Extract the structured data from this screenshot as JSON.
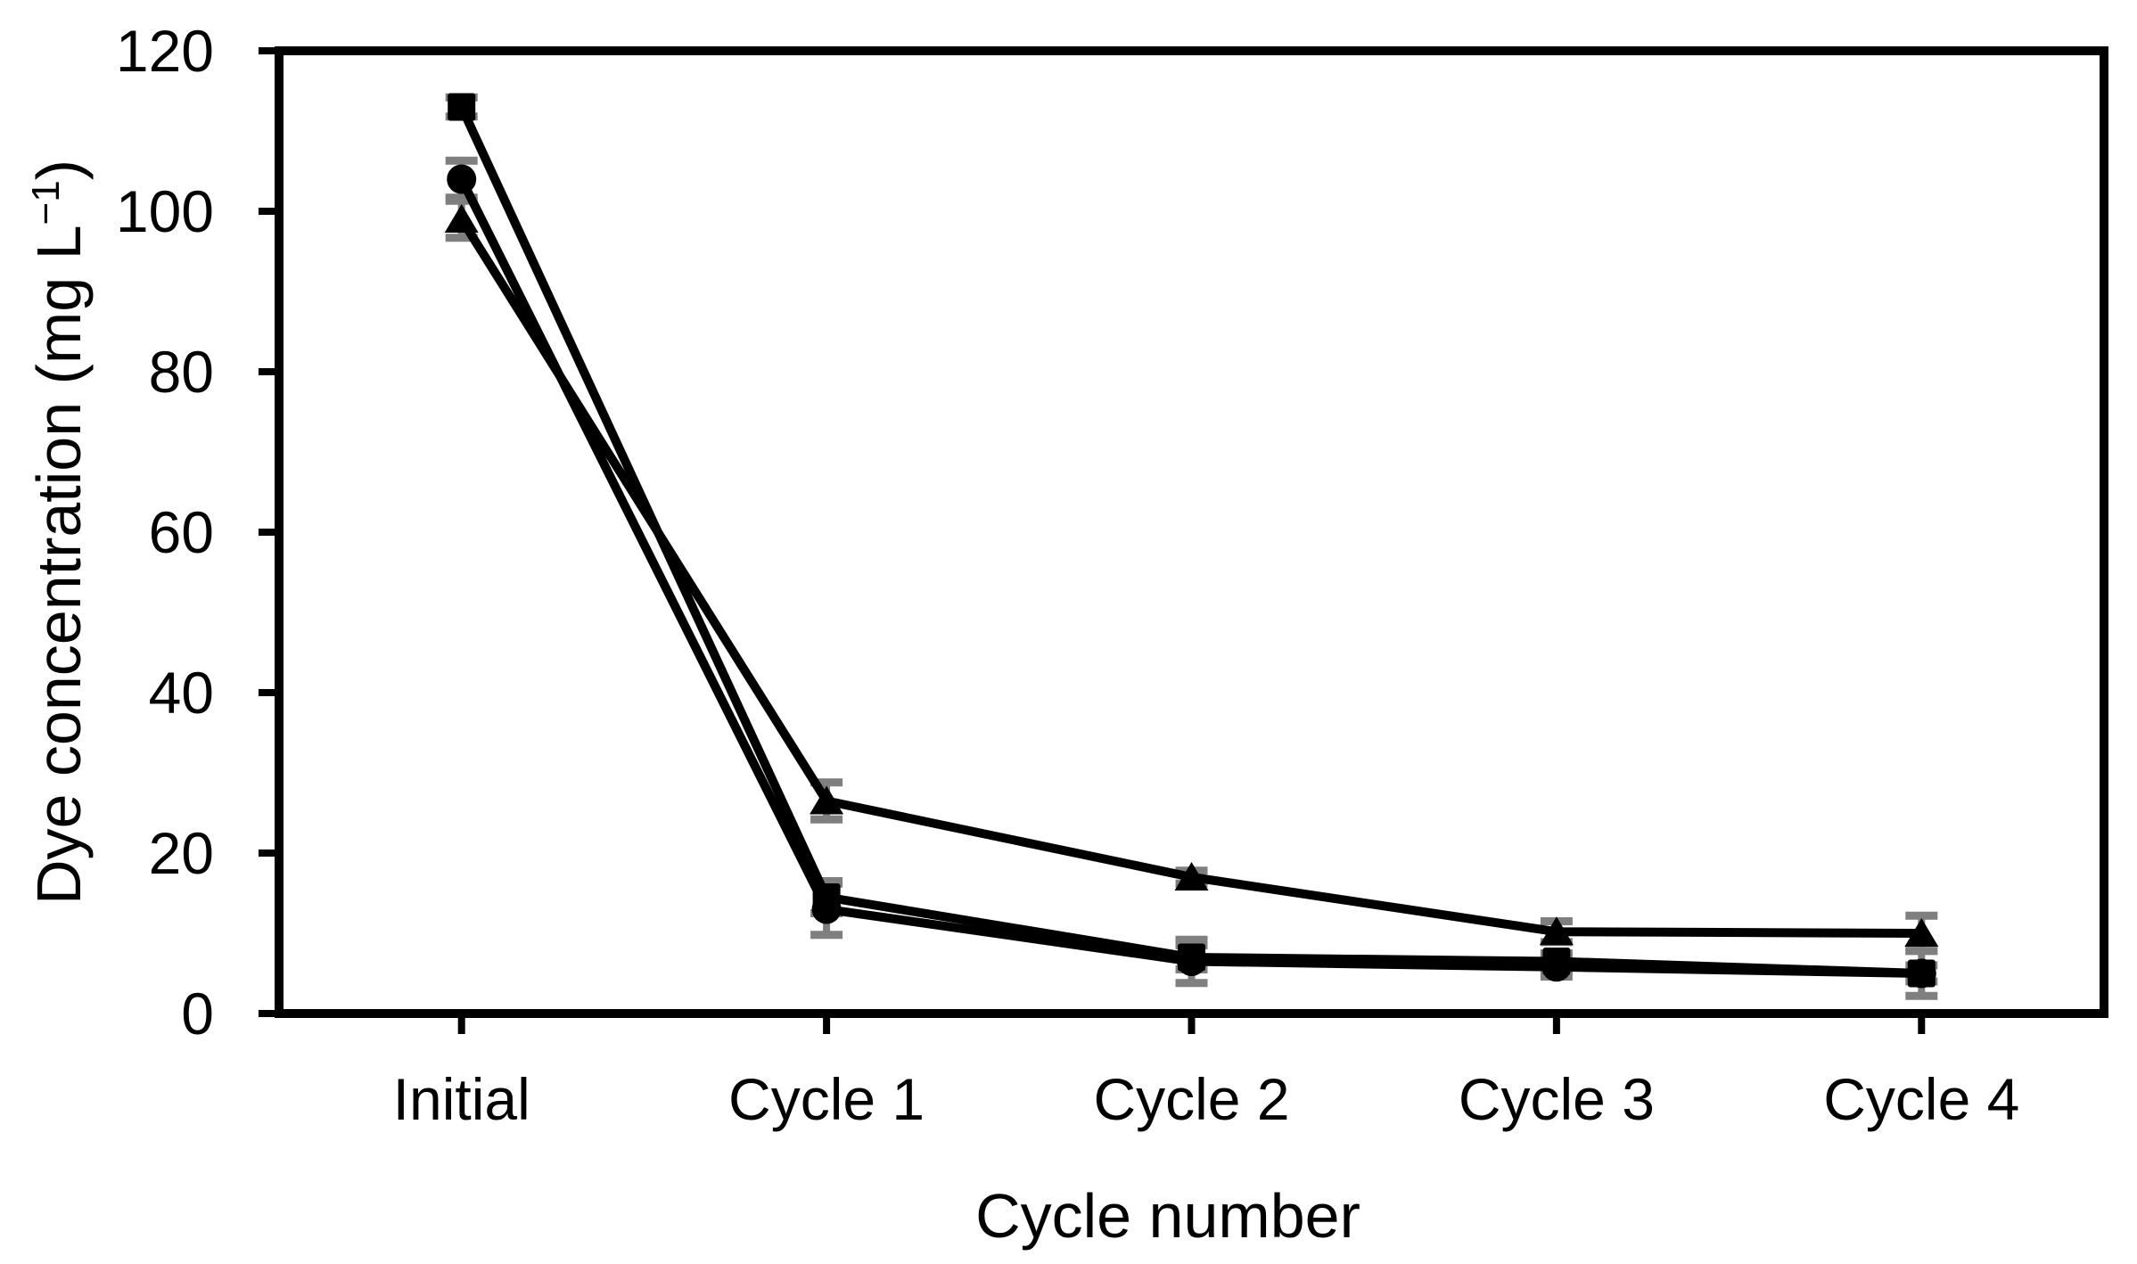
{
  "page": {
    "background": "#ffffff"
  },
  "axis_titles": {
    "x": "Cycle number",
    "y_prefix": "Dye concentration (mg L",
    "y_sup": "−1",
    "y_suffix": ")",
    "y_full": "Dye concentration (mg L⁻¹)"
  },
  "colors": {
    "series_line": "#000000",
    "marker_fill": "#000000",
    "error_bar": "#7f7f7f",
    "axis": "#000000",
    "text": "#000000",
    "background": "#ffffff"
  },
  "chart_data": {
    "type": "line",
    "title": "",
    "xlabel": "Cycle number",
    "ylabel": "Dye concentration (mg L⁻¹)",
    "categories": [
      "Initial",
      "Cycle 1",
      "Cycle 2",
      "Cycle 3",
      "Cycle 4"
    ],
    "ylim": [
      0,
      120
    ],
    "ytick_step": 20,
    "ytick_labels": [
      "0",
      "20",
      "40",
      "60",
      "80",
      "100",
      "120"
    ],
    "grid": false,
    "legend": false,
    "series": [
      {
        "name": "square-marker-series",
        "marker": "square",
        "color": "#000000",
        "values": [
          113,
          14.5,
          7,
          6.5,
          5
        ],
        "error_bars": [
          1.2,
          2.0,
          1.5,
          1.0,
          1.0
        ]
      },
      {
        "name": "circle-marker-series",
        "marker": "circle",
        "color": "#000000",
        "values": [
          104,
          13,
          6.5,
          5.8,
          5
        ],
        "error_bars": [
          2.3,
          3.2,
          2.7,
          1.2,
          2.8
        ]
      },
      {
        "name": "triangle-marker-series",
        "marker": "triangle",
        "color": "#000000",
        "values": [
          99,
          26.5,
          17,
          10.2,
          10
        ],
        "error_bars": [
          2.3,
          2.3,
          0.8,
          1.3,
          2.2
        ]
      }
    ]
  }
}
